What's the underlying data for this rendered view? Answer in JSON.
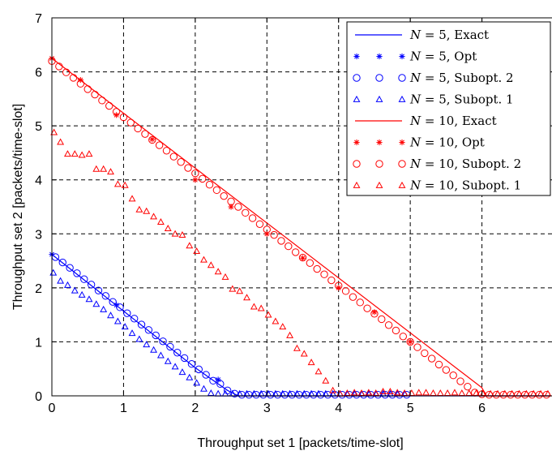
{
  "chart_data": {
    "type": "line",
    "xlabel": "Throughput set 1 [packets/time-slot]",
    "ylabel": "Throughput set 2  [packets/time-slot]",
    "xlim": [
      0,
      7
    ],
    "ylim": [
      0,
      7
    ],
    "x_ticks": [
      "0",
      "1",
      "2",
      "3",
      "4",
      "5",
      "6"
    ],
    "y_ticks": [
      "0",
      "1",
      "2",
      "3",
      "4",
      "5",
      "6",
      "7"
    ],
    "grid": true,
    "grid_style": "dashed",
    "legend_position": "top-right",
    "colors": {
      "blue": "#0000ff",
      "red": "#ff0000"
    },
    "series": [
      {
        "name": "N = 5, Exact",
        "label_n": "N",
        "label_rest": " = 5, Exact",
        "color": "#0000ff",
        "style": "line",
        "points": [
          [
            0,
            2.62
          ],
          [
            2.0,
            0.52
          ],
          [
            2.45,
            0.1
          ],
          [
            2.6,
            0.0
          ],
          [
            6.95,
            0.0
          ]
        ]
      },
      {
        "name": "N = 5, Opt",
        "label_n": "N",
        "label_rest": " = 5, Opt",
        "color": "#0000ff",
        "style": "star",
        "points": [
          [
            0,
            2.62
          ],
          [
            0.9,
            1.68
          ],
          [
            2.32,
            0.3
          ]
        ]
      },
      {
        "name": "N = 5, Subopt. 2",
        "label_n": "N",
        "label_rest": " = 5, Subopt. 2",
        "color": "#0000ff",
        "style": "circle",
        "points": [
          [
            0.05,
            2.57
          ],
          [
            0.15,
            2.47
          ],
          [
            0.25,
            2.37
          ],
          [
            0.35,
            2.27
          ],
          [
            0.45,
            2.16
          ],
          [
            0.55,
            2.06
          ],
          [
            0.65,
            1.95
          ],
          [
            0.75,
            1.85
          ],
          [
            0.85,
            1.74
          ],
          [
            0.95,
            1.64
          ],
          [
            1.05,
            1.53
          ],
          [
            1.15,
            1.43
          ],
          [
            1.25,
            1.32
          ],
          [
            1.35,
            1.22
          ],
          [
            1.45,
            1.12
          ],
          [
            1.55,
            1.01
          ],
          [
            1.65,
            0.91
          ],
          [
            1.75,
            0.8
          ],
          [
            1.85,
            0.7
          ],
          [
            1.95,
            0.59
          ],
          [
            2.05,
            0.49
          ],
          [
            2.15,
            0.39
          ],
          [
            2.25,
            0.28
          ],
          [
            2.35,
            0.22
          ],
          [
            2.45,
            0.1
          ],
          [
            2.55,
            0.04
          ],
          [
            2.65,
            0.02
          ],
          [
            2.75,
            0.02
          ],
          [
            2.85,
            0.02
          ],
          [
            2.95,
            0.02
          ],
          [
            3.05,
            0.02
          ],
          [
            3.15,
            0.02
          ],
          [
            3.25,
            0.02
          ],
          [
            3.35,
            0.02
          ],
          [
            3.45,
            0.02
          ],
          [
            3.55,
            0.02
          ],
          [
            3.65,
            0.02
          ],
          [
            3.75,
            0.02
          ],
          [
            3.85,
            0.02
          ],
          [
            3.95,
            0.02
          ],
          [
            4.05,
            0.02
          ],
          [
            4.15,
            0.02
          ],
          [
            4.25,
            0.02
          ],
          [
            4.35,
            0.02
          ],
          [
            4.45,
            0.02
          ],
          [
            4.55,
            0.02
          ],
          [
            4.65,
            0.02
          ],
          [
            4.75,
            0.02
          ],
          [
            4.85,
            0.02
          ],
          [
            4.95,
            0.02
          ]
        ]
      },
      {
        "name": "N = 5, Subopt. 1",
        "label_n": "N",
        "label_rest": " = 5, Subopt. 1",
        "color": "#0000ff",
        "style": "triangle",
        "points": [
          [
            0.02,
            2.28
          ],
          [
            0.12,
            2.13
          ],
          [
            0.22,
            2.05
          ],
          [
            0.32,
            1.95
          ],
          [
            0.42,
            1.87
          ],
          [
            0.52,
            1.79
          ],
          [
            0.62,
            1.7
          ],
          [
            0.72,
            1.6
          ],
          [
            0.82,
            1.49
          ],
          [
            0.92,
            1.38
          ],
          [
            1.02,
            1.28
          ],
          [
            1.12,
            1.16
          ],
          [
            1.22,
            1.05
          ],
          [
            1.32,
            0.95
          ],
          [
            1.42,
            0.85
          ],
          [
            1.52,
            0.75
          ],
          [
            1.62,
            0.64
          ],
          [
            1.72,
            0.54
          ],
          [
            1.82,
            0.44
          ],
          [
            1.92,
            0.34
          ],
          [
            2.02,
            0.24
          ],
          [
            2.12,
            0.13
          ],
          [
            2.22,
            0.05
          ],
          [
            2.32,
            0.04
          ],
          [
            2.42,
            0.04
          ],
          [
            2.52,
            0.04
          ],
          [
            2.62,
            0.04
          ],
          [
            2.72,
            0.04
          ],
          [
            2.82,
            0.04
          ],
          [
            2.92,
            0.04
          ],
          [
            3.02,
            0.04
          ],
          [
            3.12,
            0.04
          ],
          [
            3.22,
            0.04
          ],
          [
            3.32,
            0.04
          ],
          [
            3.42,
            0.04
          ],
          [
            3.52,
            0.04
          ],
          [
            3.62,
            0.04
          ],
          [
            3.72,
            0.04
          ],
          [
            3.82,
            0.04
          ],
          [
            3.92,
            0.04
          ],
          [
            4.02,
            0.04
          ],
          [
            4.12,
            0.04
          ],
          [
            4.22,
            0.04
          ],
          [
            4.32,
            0.04
          ],
          [
            4.42,
            0.04
          ],
          [
            4.52,
            0.04
          ],
          [
            4.62,
            0.04
          ],
          [
            4.72,
            0.04
          ],
          [
            4.82,
            0.04
          ],
          [
            4.92,
            0.04
          ]
        ]
      },
      {
        "name": "N = 10, Exact",
        "label_n": "N",
        "label_rest": " = 10, Exact",
        "color": "#ff0000",
        "style": "line",
        "points": [
          [
            0,
            6.25
          ],
          [
            6.0,
            0.15
          ],
          [
            6.05,
            0.0
          ],
          [
            6.95,
            0.0
          ]
        ]
      },
      {
        "name": "N = 10, Opt",
        "label_n": "N",
        "label_rest": " = 10, Opt",
        "color": "#ff0000",
        "style": "star",
        "points": [
          [
            0,
            6.25
          ],
          [
            0.4,
            5.85
          ],
          [
            0.9,
            5.2
          ],
          [
            1.4,
            4.75
          ],
          [
            2.0,
            4.0
          ],
          [
            2.5,
            3.5
          ],
          [
            3.0,
            3.0
          ],
          [
            3.5,
            2.55
          ],
          [
            4.0,
            2.0
          ],
          [
            4.5,
            1.55
          ],
          [
            5.0,
            1.0
          ]
        ]
      },
      {
        "name": "N = 10, Subopt. 2",
        "label_n": "N",
        "label_rest": " = 10, Subopt. 2",
        "color": "#ff0000",
        "style": "circle",
        "points": [
          [
            0.0,
            6.2
          ],
          [
            0.1,
            6.1
          ],
          [
            0.2,
            5.99
          ],
          [
            0.3,
            5.89
          ],
          [
            0.4,
            5.78
          ],
          [
            0.5,
            5.68
          ],
          [
            0.6,
            5.58
          ],
          [
            0.7,
            5.47
          ],
          [
            0.8,
            5.37
          ],
          [
            0.9,
            5.26
          ],
          [
            1.0,
            5.16
          ],
          [
            1.1,
            5.06
          ],
          [
            1.2,
            4.95
          ],
          [
            1.3,
            4.85
          ],
          [
            1.4,
            4.74
          ],
          [
            1.5,
            4.64
          ],
          [
            1.6,
            4.54
          ],
          [
            1.7,
            4.43
          ],
          [
            1.8,
            4.33
          ],
          [
            1.9,
            4.22
          ],
          [
            2.0,
            4.12
          ],
          [
            2.1,
            4.02
          ],
          [
            2.2,
            3.91
          ],
          [
            2.3,
            3.81
          ],
          [
            2.4,
            3.7
          ],
          [
            2.5,
            3.6
          ],
          [
            2.6,
            3.5
          ],
          [
            2.7,
            3.39
          ],
          [
            2.8,
            3.29
          ],
          [
            2.9,
            3.18
          ],
          [
            3.0,
            3.08
          ],
          [
            3.1,
            2.98
          ],
          [
            3.2,
            2.87
          ],
          [
            3.3,
            2.77
          ],
          [
            3.4,
            2.66
          ],
          [
            3.5,
            2.56
          ],
          [
            3.6,
            2.46
          ],
          [
            3.7,
            2.35
          ],
          [
            3.8,
            2.25
          ],
          [
            3.9,
            2.14
          ],
          [
            4.0,
            2.04
          ],
          [
            4.1,
            1.94
          ],
          [
            4.2,
            1.83
          ],
          [
            4.3,
            1.73
          ],
          [
            4.4,
            1.62
          ],
          [
            4.5,
            1.52
          ],
          [
            4.6,
            1.42
          ],
          [
            4.7,
            1.31
          ],
          [
            4.8,
            1.21
          ],
          [
            4.9,
            1.1
          ],
          [
            5.0,
            1.0
          ],
          [
            5.1,
            0.9
          ],
          [
            5.2,
            0.79
          ],
          [
            5.3,
            0.69
          ],
          [
            5.4,
            0.58
          ],
          [
            5.5,
            0.48
          ],
          [
            5.6,
            0.38
          ],
          [
            5.7,
            0.27
          ],
          [
            5.8,
            0.17
          ],
          [
            5.9,
            0.06
          ],
          [
            6.0,
            0.03
          ],
          [
            6.1,
            0.02
          ],
          [
            6.2,
            0.02
          ],
          [
            6.3,
            0.02
          ],
          [
            6.4,
            0.02
          ],
          [
            6.5,
            0.02
          ],
          [
            6.6,
            0.02
          ],
          [
            6.7,
            0.02
          ],
          [
            6.8,
            0.02
          ],
          [
            6.9,
            0.02
          ]
        ]
      },
      {
        "name": "N = 10, Subopt. 1",
        "label_n": "N",
        "label_rest": " = 10, Subopt. 1",
        "color": "#ff0000",
        "style": "triangle",
        "points": [
          [
            0.03,
            4.88
          ],
          [
            0.12,
            4.7
          ],
          [
            0.22,
            4.48
          ],
          [
            0.32,
            4.48
          ],
          [
            0.42,
            4.46
          ],
          [
            0.52,
            4.48
          ],
          [
            0.62,
            4.2
          ],
          [
            0.72,
            4.2
          ],
          [
            0.82,
            4.15
          ],
          [
            0.92,
            3.92
          ],
          [
            1.02,
            3.9
          ],
          [
            1.12,
            3.65
          ],
          [
            1.22,
            3.45
          ],
          [
            1.32,
            3.42
          ],
          [
            1.42,
            3.32
          ],
          [
            1.52,
            3.22
          ],
          [
            1.62,
            3.1
          ],
          [
            1.72,
            3.0
          ],
          [
            1.82,
            2.98
          ],
          [
            1.92,
            2.78
          ],
          [
            2.02,
            2.68
          ],
          [
            2.12,
            2.52
          ],
          [
            2.22,
            2.42
          ],
          [
            2.32,
            2.3
          ],
          [
            2.42,
            2.2
          ],
          [
            2.52,
            1.98
          ],
          [
            2.62,
            1.94
          ],
          [
            2.72,
            1.82
          ],
          [
            2.82,
            1.65
          ],
          [
            2.92,
            1.62
          ],
          [
            3.02,
            1.5
          ],
          [
            3.12,
            1.38
          ],
          [
            3.22,
            1.28
          ],
          [
            3.32,
            1.12
          ],
          [
            3.42,
            0.88
          ],
          [
            3.52,
            0.78
          ],
          [
            3.62,
            0.62
          ],
          [
            3.72,
            0.45
          ],
          [
            3.82,
            0.28
          ],
          [
            3.92,
            0.1
          ],
          [
            4.02,
            0.04
          ],
          [
            4.12,
            0.05
          ],
          [
            4.22,
            0.06
          ],
          [
            4.32,
            0.05
          ],
          [
            4.42,
            0.06
          ],
          [
            4.52,
            0.05
          ],
          [
            4.62,
            0.08
          ],
          [
            4.72,
            0.08
          ],
          [
            4.82,
            0.06
          ],
          [
            4.92,
            0.05
          ],
          [
            5.02,
            0.05
          ],
          [
            5.12,
            0.06
          ],
          [
            5.22,
            0.06
          ],
          [
            5.32,
            0.05
          ],
          [
            5.42,
            0.05
          ],
          [
            5.52,
            0.05
          ],
          [
            5.62,
            0.06
          ],
          [
            5.72,
            0.05
          ],
          [
            5.82,
            0.05
          ],
          [
            5.92,
            0.05
          ],
          [
            6.02,
            0.05
          ],
          [
            6.12,
            0.04
          ],
          [
            6.22,
            0.04
          ],
          [
            6.32,
            0.04
          ],
          [
            6.42,
            0.04
          ],
          [
            6.52,
            0.04
          ],
          [
            6.62,
            0.04
          ],
          [
            6.72,
            0.04
          ],
          [
            6.82,
            0.04
          ],
          [
            6.92,
            0.04
          ]
        ]
      }
    ]
  }
}
